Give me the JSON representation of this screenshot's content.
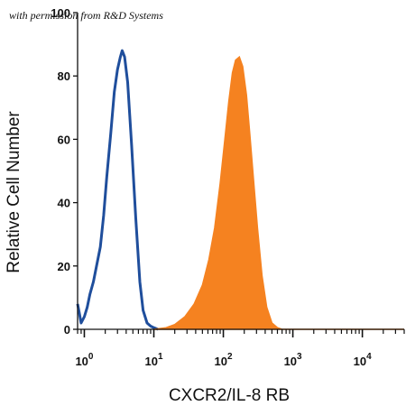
{
  "watermark": "with permission from R&D Systems",
  "chart_data": {
    "type": "area",
    "xlabel": "CXCR2/IL-8 RB",
    "ylabel": "Relative Cell Number",
    "xscale": "log",
    "xlim": [
      0.8,
      40000
    ],
    "ylim": [
      0,
      100
    ],
    "yticks": [
      "0",
      "20",
      "40",
      "60",
      "80",
      "100"
    ],
    "xticks": [
      {
        "base": "10",
        "exp": "0",
        "value": 1
      },
      {
        "base": "10",
        "exp": "1",
        "value": 10
      },
      {
        "base": "10",
        "exp": "2",
        "value": 100
      },
      {
        "base": "10",
        "exp": "3",
        "value": 1000
      },
      {
        "base": "10",
        "exp": "4",
        "value": 10000
      }
    ],
    "series": [
      {
        "style": "outline",
        "color": "#1f4e9c",
        "points": [
          [
            0.8,
            8
          ],
          [
            0.85,
            5
          ],
          [
            0.9,
            2
          ],
          [
            1.0,
            4
          ],
          [
            1.1,
            7
          ],
          [
            1.2,
            11
          ],
          [
            1.35,
            15
          ],
          [
            1.5,
            20
          ],
          [
            1.7,
            26
          ],
          [
            1.9,
            36
          ],
          [
            2.1,
            48
          ],
          [
            2.4,
            62
          ],
          [
            2.7,
            75
          ],
          [
            3.0,
            82
          ],
          [
            3.3,
            86
          ],
          [
            3.5,
            88
          ],
          [
            3.8,
            86
          ],
          [
            4.2,
            78
          ],
          [
            4.8,
            58
          ],
          [
            5.5,
            35
          ],
          [
            6.3,
            15
          ],
          [
            7.0,
            6
          ],
          [
            8.0,
            2
          ],
          [
            9.0,
            1
          ],
          [
            10.0,
            0.5
          ],
          [
            11.5,
            0
          ]
        ]
      },
      {
        "style": "filled",
        "color": "#f58220",
        "points": [
          [
            10,
            0
          ],
          [
            15,
            0.5
          ],
          [
            20,
            1.5
          ],
          [
            28,
            4
          ],
          [
            38,
            8
          ],
          [
            50,
            14
          ],
          [
            62,
            22
          ],
          [
            75,
            32
          ],
          [
            90,
            46
          ],
          [
            105,
            60
          ],
          [
            120,
            72
          ],
          [
            135,
            81
          ],
          [
            150,
            85
          ],
          [
            170,
            86
          ],
          [
            190,
            83
          ],
          [
            215,
            74
          ],
          [
            240,
            62
          ],
          [
            270,
            48
          ],
          [
            310,
            32
          ],
          [
            360,
            17
          ],
          [
            420,
            7
          ],
          [
            500,
            2
          ],
          [
            600,
            0.5
          ],
          [
            700,
            0
          ],
          [
            40000,
            0
          ]
        ]
      }
    ]
  }
}
